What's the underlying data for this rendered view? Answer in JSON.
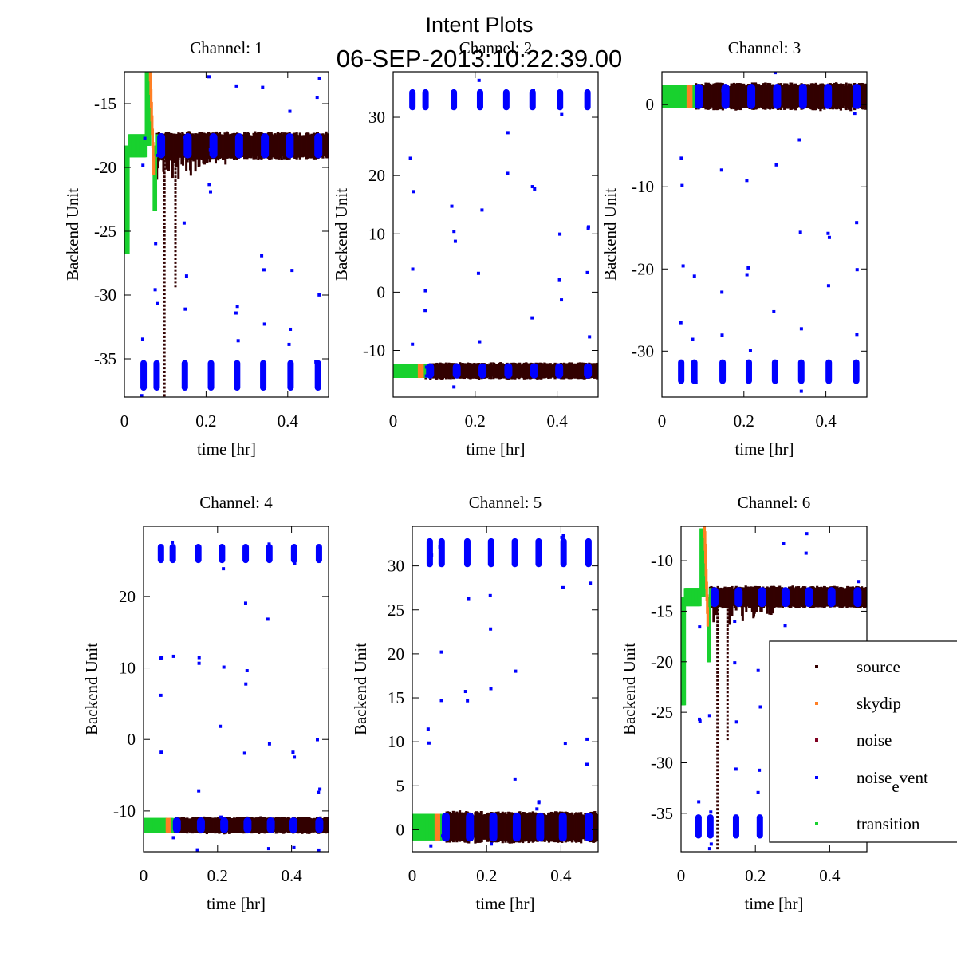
{
  "figure": {
    "title": "Intent Plots",
    "subtitle": "06-SEP-2013:10:22:39.00"
  },
  "legend": {
    "placement": "lower-right of Channel 6",
    "entries": [
      {
        "name": "source",
        "label": "source",
        "color": "#330000"
      },
      {
        "name": "skydip",
        "label": "skydip",
        "color": "#ff7f24"
      },
      {
        "name": "noise",
        "label": "noise",
        "color": "#7f0020"
      },
      {
        "name": "noise_event",
        "label_main": "noise",
        "label_sub": "e",
        "label_rest": "vent",
        "color": "#0000ff"
      },
      {
        "name": "transition",
        "label": "transition",
        "color": "#19d12f"
      }
    ]
  },
  "chart_data": [
    {
      "type": "scatter",
      "title": "Channel: 1",
      "xlabel": "time [hr]",
      "ylabel": "Backend Unit",
      "xlim": [
        0,
        0.5
      ],
      "ylim": [
        -38.0,
        -12.5
      ],
      "xticks": [
        0,
        0.2,
        0.4
      ],
      "xtick_labels": [
        "0",
        "0.2",
        "0.4"
      ],
      "yticks": [
        -35,
        -30,
        -25,
        -20,
        -15
      ],
      "ytick_labels": [
        "-35",
        "-30",
        "-25",
        "-20",
        "-15"
      ],
      "profile": {
        "baseline": -18.3,
        "band": 0.9,
        "noise_event_high": null,
        "noise_event_low": -36.3,
        "noise_event_spread": 0.8,
        "skydip_peak": -12.5,
        "transition_dip": -26.8,
        "dropouts": true,
        "dropout_low": -38.0
      },
      "noise_event_scans_hr": [
        0.047,
        0.079,
        0.148,
        0.212,
        0.276,
        0.34,
        0.407,
        0.474
      ],
      "transition_scans_hr": [
        0.09,
        0.155,
        0.218,
        0.281,
        0.344,
        0.405,
        0.475
      ],
      "series": [
        {
          "name": "source",
          "note": "dense band around baseline from 0.08 to 0.5 hr"
        },
        {
          "name": "skydip",
          "note": "sweep near 0.06-0.08 hr"
        },
        {
          "name": "noise",
          "note": "not separately visible"
        },
        {
          "name": "noise_event",
          "note": "clusters near -36.3 at scan times plus sparse outliers"
        },
        {
          "name": "transition",
          "note": "0-0.08 hr start and short segments at scan boundaries"
        }
      ]
    },
    {
      "type": "scatter",
      "title": "Channel: 2",
      "xlabel": "time [hr]",
      "ylabel": "Backend Unit",
      "xlim": [
        0,
        0.5
      ],
      "ylim": [
        -18.0,
        37.8
      ],
      "xticks": [
        0,
        0.2,
        0.4
      ],
      "xtick_labels": [
        "0",
        "0.2",
        "0.4"
      ],
      "yticks": [
        -10,
        0,
        10,
        20,
        30
      ],
      "ytick_labels": [
        "-10",
        "0",
        "10",
        "20",
        "30"
      ],
      "profile": {
        "baseline": -13.5,
        "band": 1.2,
        "noise_event_high": 33.0,
        "noise_event_low": null,
        "noise_event_spread": 1.2,
        "skydip_peak": null,
        "transition_dip": null,
        "dropouts": false
      },
      "noise_event_scans_hr": [
        0.047,
        0.079,
        0.148,
        0.212,
        0.276,
        0.34,
        0.407,
        0.474
      ],
      "transition_scans_hr": [
        0.09,
        0.155,
        0.218,
        0.281,
        0.344,
        0.405,
        0.475
      ],
      "series": [
        {
          "name": "source",
          "note": "band near -13.5"
        },
        {
          "name": "skydip",
          "note": "small segment near 0.07 hr"
        },
        {
          "name": "noise",
          "note": "not separately visible"
        },
        {
          "name": "noise_event",
          "note": "clusters near 33 plus sparse outliers"
        },
        {
          "name": "transition",
          "note": "start 0-0.08 hr and scan boundaries"
        }
      ]
    },
    {
      "type": "scatter",
      "title": "Channel: 3",
      "xlabel": "time [hr]",
      "ylabel": "Backend Unit",
      "xlim": [
        0,
        0.5
      ],
      "ylim": [
        -35.6,
        4.0
      ],
      "xticks": [
        0,
        0.2,
        0.4
      ],
      "xtick_labels": [
        "0",
        "0.2",
        "0.4"
      ],
      "yticks": [
        -30,
        -20,
        -10,
        0
      ],
      "ytick_labels": [
        "-30",
        "-20",
        "-10",
        "0"
      ],
      "profile": {
        "baseline": 1.0,
        "band": 1.4,
        "noise_event_high": null,
        "noise_event_low": -32.5,
        "noise_event_spread": 1.0,
        "skydip_peak": null,
        "transition_dip": null,
        "dropouts": false
      },
      "noise_event_scans_hr": [
        0.047,
        0.079,
        0.148,
        0.212,
        0.276,
        0.34,
        0.407,
        0.474
      ],
      "transition_scans_hr": [
        0.09,
        0.155,
        0.218,
        0.281,
        0.344,
        0.405,
        0.475
      ],
      "series": [
        {
          "name": "source",
          "note": "band near 1"
        },
        {
          "name": "skydip",
          "note": "small segment near 0.07 hr"
        },
        {
          "name": "noise",
          "note": "not separately visible"
        },
        {
          "name": "noise_event",
          "note": "clusters near -32.5 plus sparse outliers"
        },
        {
          "name": "transition",
          "note": "start 0-0.08 hr and scan boundaries"
        }
      ]
    },
    {
      "type": "scatter",
      "title": "Channel: 4",
      "xlabel": "time [hr]",
      "ylabel": "Backend Unit",
      "xlim": [
        0,
        0.5
      ],
      "ylim": [
        -15.7,
        29.8
      ],
      "xticks": [
        0,
        0.2,
        0.4
      ],
      "xtick_labels": [
        "0",
        "0.2",
        "0.4"
      ],
      "yticks": [
        -10,
        0,
        10,
        20
      ],
      "ytick_labels": [
        "-10",
        "0",
        "10",
        "20"
      ],
      "profile": {
        "baseline": -12.0,
        "band": 1.0,
        "noise_event_high": 26.0,
        "noise_event_low": null,
        "noise_event_spread": 0.9,
        "skydip_peak": null,
        "transition_dip": null,
        "dropouts": false
      },
      "noise_event_scans_hr": [
        0.047,
        0.079,
        0.148,
        0.212,
        0.276,
        0.34,
        0.407,
        0.474
      ],
      "transition_scans_hr": [
        0.09,
        0.155,
        0.218,
        0.281,
        0.344,
        0.405,
        0.475
      ],
      "series": [
        {
          "name": "source",
          "note": "band near -12"
        },
        {
          "name": "skydip",
          "note": "small segment near 0.07 hr"
        },
        {
          "name": "noise",
          "note": "not separately visible"
        },
        {
          "name": "noise_event",
          "note": "clusters near 26 plus sparse outliers"
        },
        {
          "name": "transition",
          "note": "start 0-0.08 hr and scan boundaries"
        }
      ]
    },
    {
      "type": "scatter",
      "title": "Channel: 5",
      "xlabel": "time [hr]",
      "ylabel": "Backend Unit",
      "xlim": [
        0,
        0.5
      ],
      "ylim": [
        -2.5,
        34.5
      ],
      "xticks": [
        0,
        0.2,
        0.4
      ],
      "xtick_labels": [
        "0",
        "0.2",
        "0.4"
      ],
      "yticks": [
        0,
        5,
        10,
        15,
        20,
        25,
        30
      ],
      "ytick_labels": [
        "0",
        "5",
        "10",
        "15",
        "20",
        "25",
        "30"
      ],
      "profile": {
        "baseline": 0.3,
        "band": 1.5,
        "noise_event_high": 31.5,
        "noise_event_low": null,
        "noise_event_spread": 1.1,
        "skydip_peak": null,
        "transition_dip": null,
        "dropouts": false
      },
      "noise_event_scans_hr": [
        0.047,
        0.079,
        0.148,
        0.212,
        0.276,
        0.34,
        0.407,
        0.474
      ],
      "transition_scans_hr": [
        0.09,
        0.155,
        0.218,
        0.281,
        0.344,
        0.405,
        0.475
      ],
      "series": [
        {
          "name": "source",
          "note": "band near 0.3"
        },
        {
          "name": "skydip",
          "note": "small segment near 0.07 hr"
        },
        {
          "name": "noise",
          "note": "not separately visible"
        },
        {
          "name": "noise_event",
          "note": "clusters near 31.5 plus sparse outliers"
        },
        {
          "name": "transition",
          "note": "start 0-0.08 hr and scan boundaries"
        }
      ]
    },
    {
      "type": "scatter",
      "title": "Channel: 6",
      "xlabel": "time [hr]",
      "ylabel": "Backend Unit",
      "xlim": [
        0,
        0.5
      ],
      "ylim": [
        -38.8,
        -6.6
      ],
      "xticks": [
        0,
        0.2,
        0.4
      ],
      "xtick_labels": [
        "0",
        "0.2",
        "0.4"
      ],
      "yticks": [
        -35,
        -30,
        -25,
        -20,
        -15,
        -10
      ],
      "ytick_labels": [
        "-35",
        "-30",
        "-25",
        "-20",
        "-15",
        "-10"
      ],
      "profile": {
        "baseline": -13.6,
        "band": 0.9,
        "noise_event_high": null,
        "noise_event_low": -36.3,
        "noise_event_spread": 0.8,
        "skydip_peak": -6.8,
        "transition_dip": -24.3,
        "dropouts": true,
        "dropout_low": -38.8
      },
      "noise_event_scans_hr": [
        0.047,
        0.079,
        0.148,
        0.212,
        0.276,
        0.34,
        0.407,
        0.474
      ],
      "transition_scans_hr": [
        0.09,
        0.155,
        0.218,
        0.281,
        0.344,
        0.405,
        0.475
      ],
      "series": [
        {
          "name": "source",
          "note": "band near -13.6 with dropouts"
        },
        {
          "name": "skydip",
          "note": "sweep near 0.06-0.08 hr"
        },
        {
          "name": "noise",
          "note": "not separately visible"
        },
        {
          "name": "noise_event",
          "note": "clusters near -36.3 plus sparse outliers"
        },
        {
          "name": "transition",
          "note": "start 0-0.08 hr and scan boundaries"
        }
      ]
    }
  ]
}
